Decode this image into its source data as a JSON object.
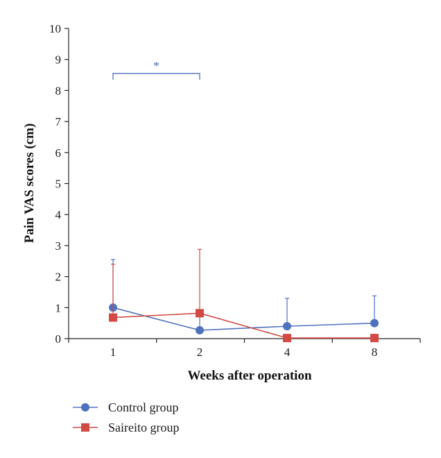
{
  "chart_data": {
    "type": "line",
    "title": "",
    "xlabel": "Weeks after operation",
    "ylabel": "Pain VAS scores (cm)",
    "categories": [
      "1",
      "2",
      "4",
      "8"
    ],
    "ylim": [
      0,
      10
    ],
    "yticks": [
      "0",
      "1",
      "2",
      "3",
      "4",
      "5",
      "6",
      "7",
      "8",
      "9",
      "10"
    ],
    "grid": false,
    "legend_position": "bottom-left",
    "series": [
      {
        "name": "Control group",
        "marker": "circle",
        "color": "#4f72bf",
        "values": [
          1.0,
          0.27,
          0.4,
          0.5
        ],
        "error_upper": [
          1.55,
          0.6,
          0.9,
          0.88
        ]
      },
      {
        "name": "Saireito group",
        "marker": "square",
        "color": "#d24a43",
        "values": [
          0.68,
          0.82,
          0.02,
          0.02
        ],
        "error_upper": [
          1.72,
          2.06,
          0.0,
          0.0
        ]
      }
    ],
    "annotations": [
      {
        "text": "*",
        "from_category": "1",
        "to_category": "2",
        "y": 8.55,
        "color": "#4f72bf"
      }
    ]
  }
}
